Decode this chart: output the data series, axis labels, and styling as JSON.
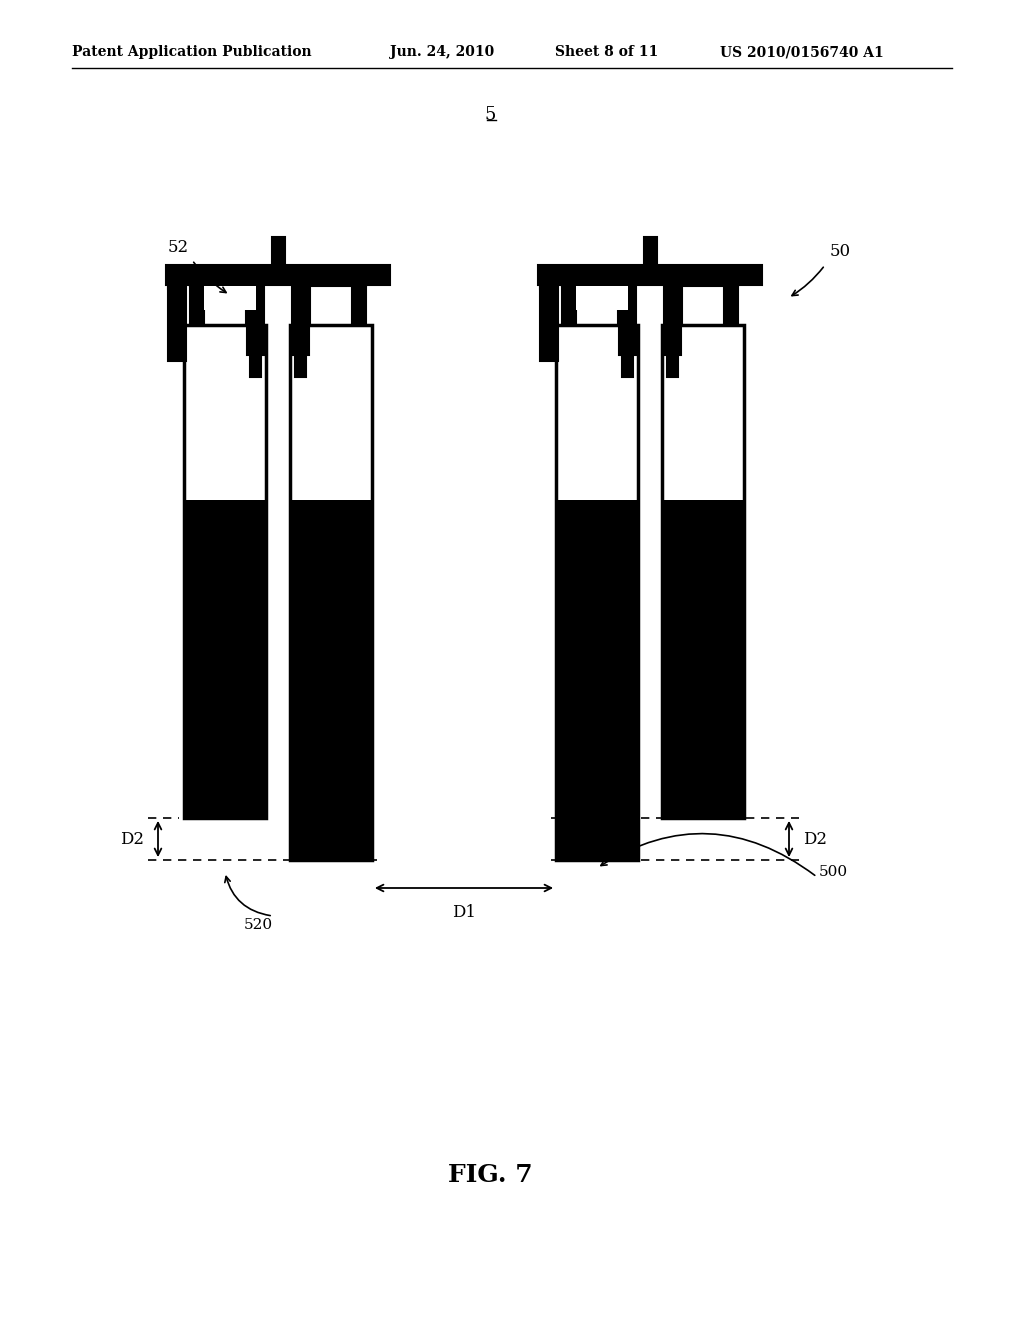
{
  "bg_color": "#ffffff",
  "header_text": "Patent Application Publication",
  "header_date": "Jun. 24, 2010",
  "header_sheet": "Sheet 8 of 11",
  "header_patent": "US 2010/0156740 A1",
  "fig_label": "FIG. 7",
  "label_5": "5",
  "label_52": "52",
  "label_50": "50",
  "label_520": "520",
  "label_500": "500",
  "label_D1": "D1",
  "label_D2": "D2",
  "black": "#000000",
  "white": "#ffffff"
}
